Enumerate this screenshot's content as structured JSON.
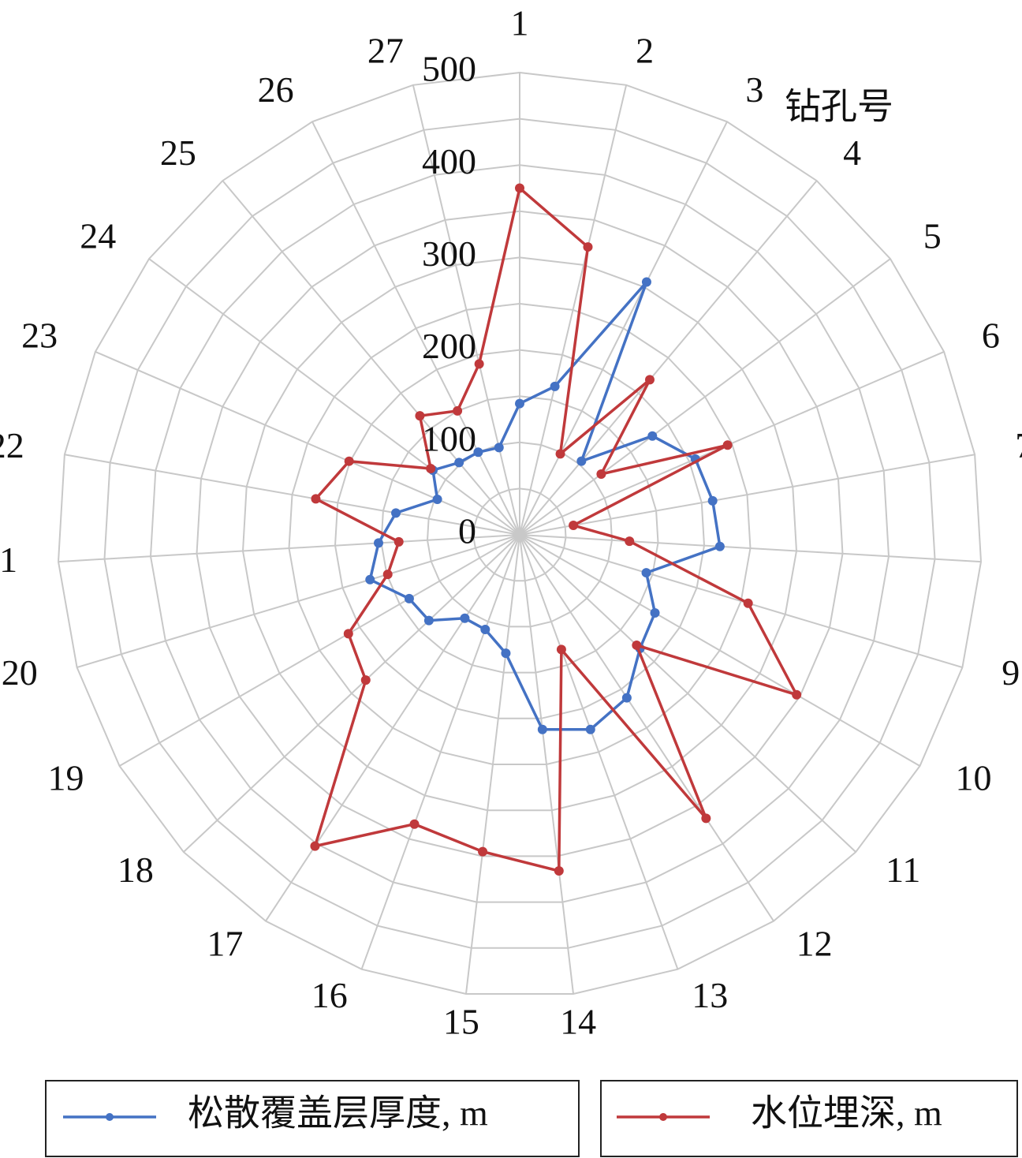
{
  "chart_data": {
    "type": "radar",
    "axis_label": "钻孔号",
    "categories": [
      "1",
      "2",
      "3",
      "4",
      "5",
      "6",
      "7",
      "8",
      "9",
      "10",
      "11",
      "12",
      "13",
      "14",
      "15",
      "16",
      "17",
      "18",
      "19",
      "20",
      "21",
      "22",
      "23",
      "24",
      "25",
      "26",
      "27"
    ],
    "series": [
      {
        "name": "松散覆盖层厚度, m",
        "color": "#4472c4",
        "values": [
          142,
          165,
          306,
          104,
          179,
          207,
          212,
          217,
          143,
          169,
          179,
          211,
          224,
          212,
          129,
          109,
          108,
          135,
          138,
          169,
          153,
          136,
          97,
          117,
          102,
          100,
          97
        ]
      },
      {
        "name": "水位埋深, m",
        "color": "#c0393b",
        "values": [
          375,
          320,
          98,
          219,
          110,
          245,
          59,
          119,
          258,
          346,
          174,
          367,
          132,
          366,
          345,
          333,
          403,
          229,
          214,
          149,
          131,
          224,
          201,
          120,
          168,
          150,
          190
        ]
      }
    ],
    "ylim": [
      0,
      500
    ],
    "yticks": [
      0,
      100,
      200,
      300,
      400,
      500
    ],
    "minor_gridlines": [
      50,
      150,
      250,
      350,
      450
    ],
    "grid": true,
    "legend": "bottom"
  }
}
